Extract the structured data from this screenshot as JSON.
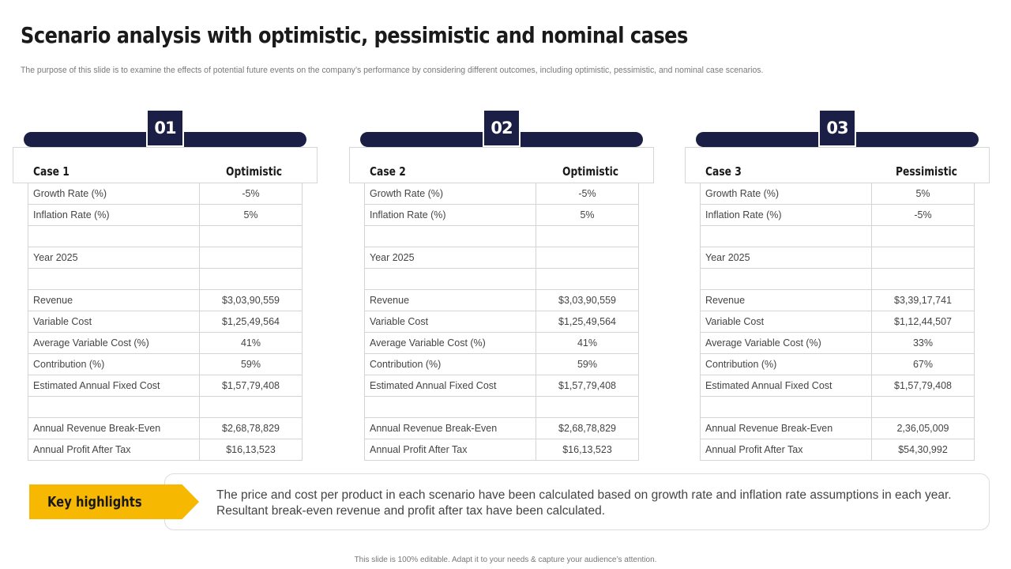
{
  "title": "Scenario analysis with optimistic, pessimistic and nominal cases",
  "subtitle": "The purpose of this slide is to examine the effects of potential future events on the company’s performance by considering different outcomes, including optimistic, pessimistic, and nominal case scenarios.",
  "cases": [
    {
      "number": "01",
      "label": "Case 1",
      "type": "Optimistic",
      "rows": [
        {
          "key": "Growth Rate (%)",
          "value": "-5%"
        },
        {
          "key": "Inflation Rate (%)",
          "value": "5%"
        },
        {
          "key": "",
          "value": ""
        },
        {
          "key": "Year 2025",
          "value": ""
        },
        {
          "key": "",
          "value": ""
        },
        {
          "key": "Revenue",
          "value": "$3,03,90,559"
        },
        {
          "key": "Variable Cost",
          "value": "$1,25,49,564"
        },
        {
          "key": "Average  Variable Cost (%)",
          "value": "41%"
        },
        {
          "key": "Contribution  (%)",
          "value": "59%"
        },
        {
          "key": "Estimated Annual Fixed Cost",
          "value": "$1,57,79,408"
        },
        {
          "key": "",
          "value": ""
        },
        {
          "key": "Annual Revenue  Break-Even",
          "value": "$2,68,78,829"
        },
        {
          "key": "Annual Profit After Tax",
          "value": "$16,13,523"
        }
      ]
    },
    {
      "number": "02",
      "label": "Case 2",
      "type": "Optimistic",
      "rows": [
        {
          "key": "Growth Rate (%)",
          "value": "-5%"
        },
        {
          "key": "Inflation Rate (%)",
          "value": "5%"
        },
        {
          "key": "",
          "value": ""
        },
        {
          "key": "Year 2025",
          "value": ""
        },
        {
          "key": "",
          "value": ""
        },
        {
          "key": "Revenue",
          "value": "$3,03,90,559"
        },
        {
          "key": "Variable Cost",
          "value": "$1,25,49,564"
        },
        {
          "key": "Average  Variable Cost (%)",
          "value": "41%"
        },
        {
          "key": "Contribution  (%)",
          "value": "59%"
        },
        {
          "key": "Estimated Annual Fixed Cost",
          "value": "$1,57,79,408"
        },
        {
          "key": "",
          "value": ""
        },
        {
          "key": "Annual Revenue  Break-Even",
          "value": "$2,68,78,829"
        },
        {
          "key": "Annual Profit After Tax",
          "value": "$16,13,523"
        }
      ]
    },
    {
      "number": "03",
      "label": "Case 3",
      "type": "Pessimistic",
      "rows": [
        {
          "key": "Growth Rate (%)",
          "value": "5%"
        },
        {
          "key": "Inflation Rate (%)",
          "value": "-5%"
        },
        {
          "key": "",
          "value": ""
        },
        {
          "key": "Year 2025",
          "value": ""
        },
        {
          "key": "",
          "value": ""
        },
        {
          "key": "Revenue",
          "value": "$3,39,17,741"
        },
        {
          "key": "Variable Cost",
          "value": "$1,12,44,507"
        },
        {
          "key": "Average  Variable Cost (%)",
          "value": "33%"
        },
        {
          "key": "Contribution  (%)",
          "value": "67%"
        },
        {
          "key": "Estimated Annual Fixed Cost",
          "value": "$1,57,79,408"
        },
        {
          "key": "",
          "value": ""
        },
        {
          "key": "Annual Revenue  Break-Even",
          "value": "2,36,05,009"
        },
        {
          "key": "Annual Profit After Tax",
          "value": "$54,30,992"
        }
      ]
    }
  ],
  "highlights": {
    "tag": "Key highlights",
    "text": "The price and cost per product in each scenario have been calculated based on growth rate and inflation rate assumptions in each year. Resultant  break-even revenue  and profit after tax have been calculated."
  },
  "footer": "This slide is 100% editable.  Adapt it to your needs & capture your audience’s attention.",
  "colors": {
    "navy": "#1c1f45",
    "accent": "#f6b800"
  }
}
